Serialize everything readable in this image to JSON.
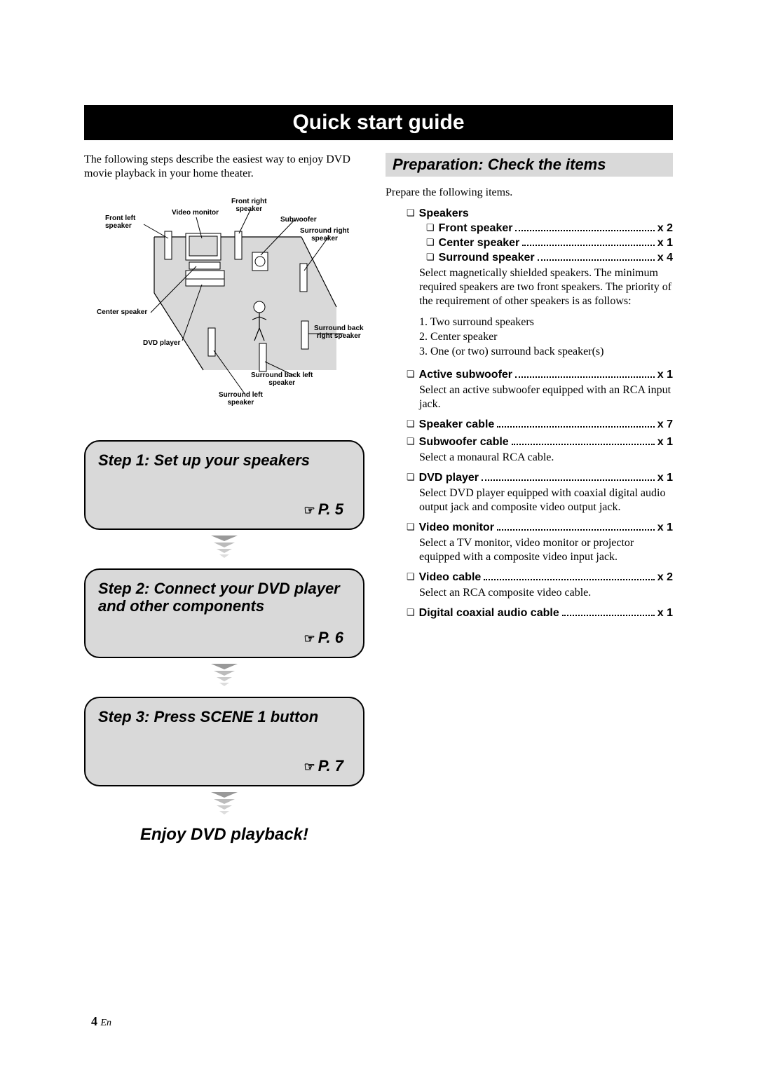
{
  "title": "Quick start guide",
  "intro": "The following steps describe the easiest way to enjoy DVD movie playback in your home theater.",
  "diagram": {
    "labels": {
      "video_monitor": "Video monitor",
      "front_left": "Front left\nspeaker",
      "front_right": "Front right\nspeaker",
      "subwoofer": "Subwoofer",
      "surround_right": "Surround right\nspeaker",
      "center_speaker": "Center speaker",
      "dvd_player": "DVD player",
      "surround_back_right": "Surround back\nright speaker",
      "surround_back_left": "Surround back left\nspeaker",
      "surround_left": "Surround left\nspeaker"
    },
    "colors": {
      "room_fill": "#d9d9d9",
      "room_stroke": "#000000",
      "line": "#000000"
    }
  },
  "steps": [
    {
      "title": "Step 1: Set up your speakers",
      "page": "P. 5"
    },
    {
      "title": "Step 2: Connect your DVD player and other components",
      "page": "P. 6"
    },
    {
      "title": "Step 3: Press SCENE 1 button",
      "page": "P. 7"
    }
  ],
  "enjoy": "Enjoy DVD playback!",
  "prep": {
    "header": "Preparation: Check the items",
    "intro": "Prepare the following items.",
    "speakers_label": "Speakers",
    "speakers_items": [
      {
        "label": "Front speaker",
        "qty": "x 2"
      },
      {
        "label": "Center speaker",
        "qty": "x 1"
      },
      {
        "label": "Surround speaker",
        "qty": "x 4"
      }
    ],
    "speakers_desc": "Select magnetically shielded speakers. The minimum required speakers are two front speakers. The priority of the requirement of other speakers is as follows:",
    "priority": [
      "1. Two surround speakers",
      "2. Center speaker",
      "3. One (or two) surround back speaker(s)"
    ],
    "items": [
      {
        "label": "Active subwoofer",
        "qty": "x 1",
        "desc": "Select an active subwoofer equipped with an RCA input jack."
      },
      {
        "label": "Speaker cable",
        "qty": "x 7",
        "desc": null
      },
      {
        "label": "Subwoofer cable",
        "qty": "x 1",
        "desc": "Select a monaural RCA cable."
      },
      {
        "label": "DVD player",
        "qty": "x 1",
        "desc": "Select DVD player equipped with coaxial digital audio output jack and composite video output jack."
      },
      {
        "label": "Video monitor",
        "qty": "x 1",
        "desc": "Select a TV monitor, video monitor or projector equipped with a composite video input jack."
      },
      {
        "label": "Video cable",
        "qty": "x 2",
        "desc": "Select an RCA composite video cable."
      },
      {
        "label": "Digital coaxial audio cable",
        "qty": "x 1",
        "desc": null
      }
    ]
  },
  "footer": {
    "page": "4",
    "lang": "En"
  }
}
